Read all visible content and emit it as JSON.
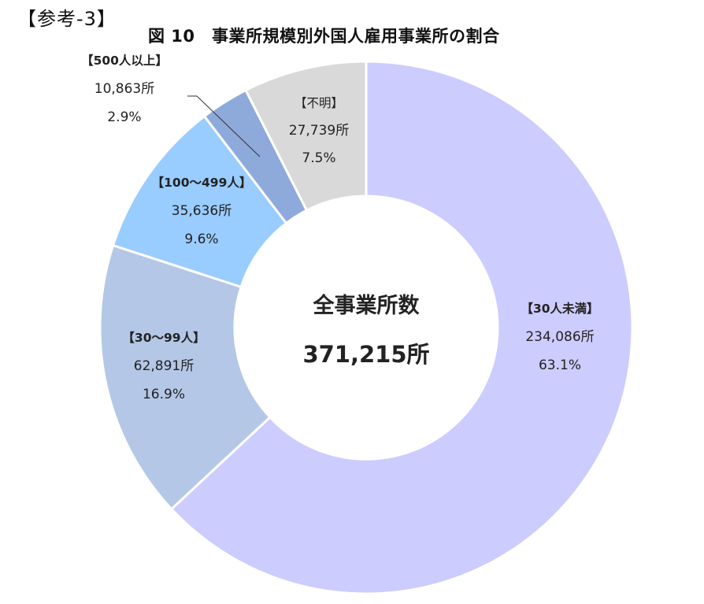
{
  "header": {
    "ref_label": "【参考-3】",
    "title": "図 10　事業所規模別外国人雇用事業所の割合"
  },
  "center": {
    "label": "全事業所数",
    "total": "371,215所"
  },
  "chart_data": {
    "type": "pie",
    "subtype": "donut",
    "title": "図 10　事業所規模別外国人雇用事業所の割合",
    "center_text": [
      "全事業所数",
      "371,215所"
    ],
    "total": 371215,
    "unit": "所",
    "start_angle_deg": 0,
    "direction": "clockwise",
    "categories": [
      "30人未満",
      "30～99人",
      "100～499人",
      "500人以上",
      "不明"
    ],
    "values": [
      234086,
      62891,
      35636,
      10863,
      27739
    ],
    "percentages": [
      63.1,
      16.9,
      9.6,
      2.9,
      7.5
    ],
    "colors": [
      "#ccccff",
      "#b4c7e7",
      "#99ccff",
      "#8eaadb",
      "#d9d9d9"
    ],
    "labels": [
      {
        "category": "【30人未満】",
        "count": "234,086所",
        "percent": "63.1%"
      },
      {
        "category": "【30～99人】",
        "count": "62,891所",
        "percent": "16.9%"
      },
      {
        "category": "【100～499人】",
        "count": "35,636所",
        "percent": "9.6%"
      },
      {
        "category": "【500人以上】",
        "count": "10,863所",
        "percent": "2.9%"
      },
      {
        "category": "【不明】",
        "count": "27,739所",
        "percent": "7.5%"
      }
    ],
    "legend": "none (data labels)"
  }
}
